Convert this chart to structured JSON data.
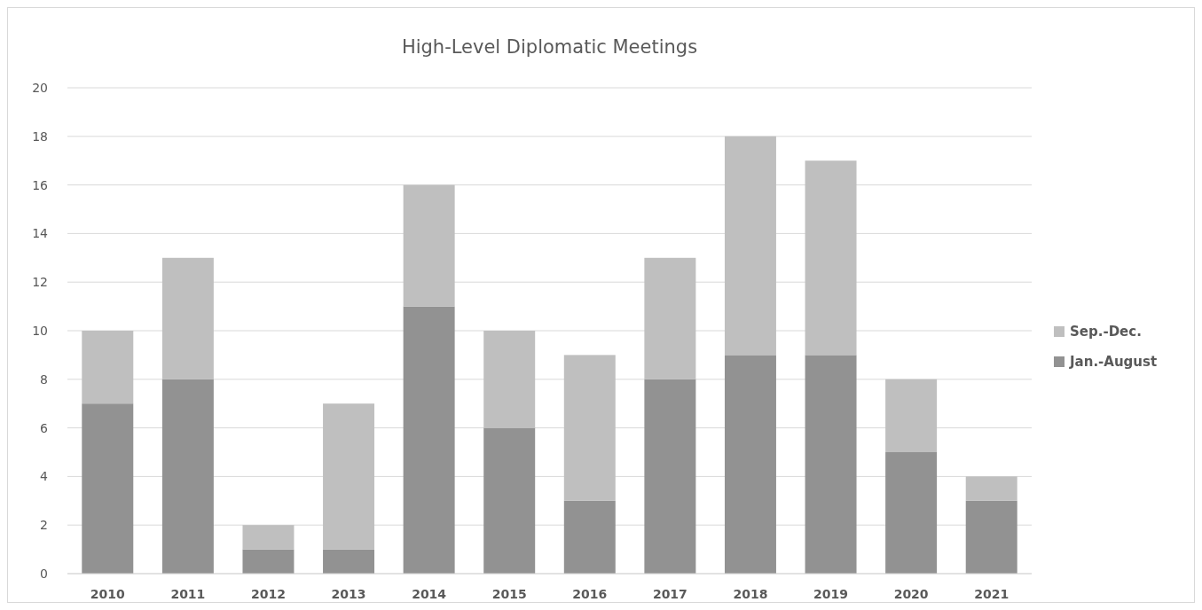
{
  "chart_data": {
    "type": "bar",
    "title": "High-Level Diplomatic Meetings",
    "stacked": true,
    "categories": [
      "2010",
      "2011",
      "2012",
      "2013",
      "2014",
      "2015",
      "2016",
      "2017",
      "2018",
      "2019",
      "2020",
      "2021"
    ],
    "series": [
      {
        "name": "Jan.-August",
        "color": "#929292",
        "values": [
          7,
          8,
          1,
          1,
          11,
          6,
          3,
          8,
          9,
          9,
          5,
          3
        ]
      },
      {
        "name": "Sep.-Dec.",
        "color": "#bfbfbf",
        "values": [
          3,
          5,
          1,
          6,
          5,
          4,
          6,
          5,
          9,
          8,
          3,
          1
        ]
      }
    ],
    "ylim": [
      0,
      20
    ],
    "yticks": [
      0,
      2,
      4,
      6,
      8,
      10,
      12,
      14,
      16,
      18,
      20
    ],
    "grid": "y",
    "legend": "right"
  }
}
